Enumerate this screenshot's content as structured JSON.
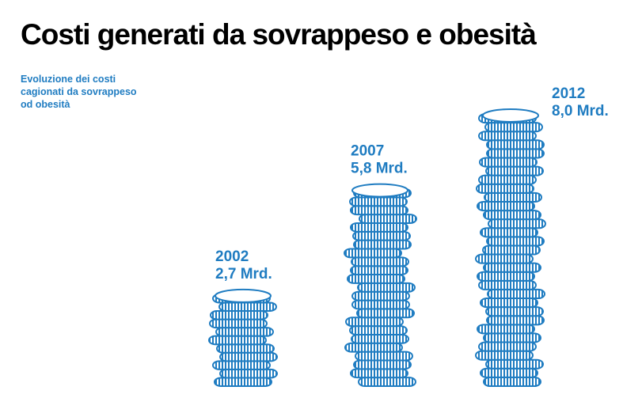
{
  "chart_data": {
    "type": "coin-stack",
    "title": "Costi generati da sovrappeso e obesità",
    "subtitle": [
      "Evoluzione dei costi",
      "cagionati da sovrappeso",
      "od obesità"
    ],
    "categories": [
      "2002",
      "2007",
      "2012"
    ],
    "values": [
      2.7,
      5.8,
      8.0
    ],
    "value_labels": [
      "2,7 Mrd.",
      "5,8 Mrd.",
      "8,0 Mrd."
    ],
    "color": "#1f7cc1"
  }
}
